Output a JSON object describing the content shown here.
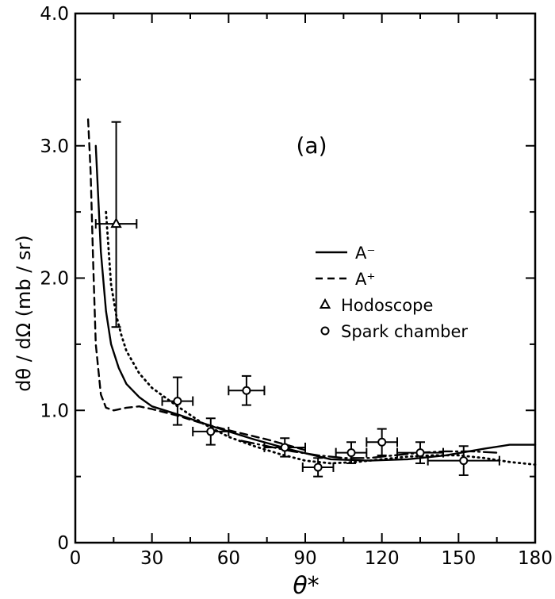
{
  "chart_data": {
    "type": "scatter",
    "panel_label": "(a)",
    "xlabel": "θ*",
    "ylabel": "dθ / dΩ  (mb / sr)",
    "xlim": [
      0,
      180
    ],
    "ylim": [
      0,
      4.0
    ],
    "x_ticks": [
      0,
      30,
      60,
      90,
      120,
      150,
      180
    ],
    "x_tick_labels": [
      "0",
      "30",
      "60",
      "90",
      "120",
      "150",
      "180"
    ],
    "y_ticks": [
      0,
      1.0,
      2.0,
      3.0,
      4.0
    ],
    "y_tick_labels": [
      "0",
      "1.0",
      "2.0",
      "3.0",
      "4.0"
    ],
    "grid": false,
    "legend_position": "right-middle",
    "legend": [
      {
        "label": "A⁻",
        "style": "solid"
      },
      {
        "label": "A⁺",
        "style": "dashed"
      },
      {
        "label": "Hodoscope",
        "marker": "triangle"
      },
      {
        "label": "Spark chamber",
        "marker": "circle"
      }
    ],
    "curves": [
      {
        "label": "A⁻",
        "style": "solid",
        "x": [
          8,
          9,
          10,
          12,
          14,
          17,
          20,
          25,
          30,
          40,
          55,
          70,
          85,
          100,
          115,
          130,
          145,
          160,
          170,
          180
        ],
        "y": [
          3.0,
          2.6,
          2.2,
          1.75,
          1.5,
          1.32,
          1.2,
          1.1,
          1.03,
          0.97,
          0.87,
          0.78,
          0.7,
          0.63,
          0.62,
          0.63,
          0.66,
          0.71,
          0.74,
          0.74
        ]
      },
      {
        "label": "A⁺",
        "style": "dashed",
        "x": [
          5,
          6,
          7,
          8,
          10,
          12,
          15,
          20,
          25,
          30,
          40,
          50,
          60,
          75,
          90
        ],
        "y": [
          3.2,
          2.8,
          2.1,
          1.5,
          1.12,
          1.02,
          1.0,
          1.02,
          1.03,
          1.01,
          0.96,
          0.9,
          0.85,
          0.78,
          0.7
        ]
      },
      {
        "label": "",
        "style": "dash-dot",
        "x": [
          65,
          75,
          85,
          95,
          105,
          115,
          125,
          135,
          145,
          155,
          165
        ],
        "y": [
          0.77,
          0.73,
          0.69,
          0.66,
          0.64,
          0.64,
          0.66,
          0.68,
          0.69,
          0.69,
          0.68
        ]
      },
      {
        "label": "",
        "style": "dotted",
        "x": [
          12,
          14,
          16,
          18,
          20,
          25,
          30,
          40,
          50,
          60,
          70,
          80,
          90,
          100,
          110,
          120,
          130,
          140,
          150,
          160,
          170,
          180
        ],
        "y": [
          2.5,
          1.95,
          1.72,
          1.57,
          1.45,
          1.28,
          1.17,
          1.03,
          0.9,
          0.8,
          0.73,
          0.67,
          0.62,
          0.6,
          0.61,
          0.63,
          0.65,
          0.66,
          0.66,
          0.64,
          0.61,
          0.59
        ]
      }
    ],
    "series": [
      {
        "name": "Hodoscope",
        "marker": "triangle",
        "points": [
          {
            "x": 16,
            "y": 2.41,
            "xerr_lo": 8,
            "xerr_hi": 8,
            "yerr_lo": 0.78,
            "yerr_hi": 0.77
          }
        ]
      },
      {
        "name": "Spark chamber",
        "marker": "circle",
        "points": [
          {
            "x": 40,
            "y": 1.07,
            "xerr_lo": 6,
            "xerr_hi": 6,
            "yerr_lo": 0.18,
            "yerr_hi": 0.18
          },
          {
            "x": 53,
            "y": 0.84,
            "xerr_lo": 7,
            "xerr_hi": 7,
            "yerr_lo": 0.1,
            "yerr_hi": 0.1
          },
          {
            "x": 67,
            "y": 1.15,
            "xerr_lo": 7,
            "xerr_hi": 7,
            "yerr_lo": 0.11,
            "yerr_hi": 0.11
          },
          {
            "x": 82,
            "y": 0.72,
            "xerr_lo": 8,
            "xerr_hi": 8,
            "yerr_lo": 0.07,
            "yerr_hi": 0.07
          },
          {
            "x": 95,
            "y": 0.57,
            "xerr_lo": 6,
            "xerr_hi": 6,
            "yerr_lo": 0.07,
            "yerr_hi": 0.07
          },
          {
            "x": 108,
            "y": 0.68,
            "xerr_lo": 6,
            "xerr_hi": 6,
            "yerr_lo": 0.08,
            "yerr_hi": 0.08
          },
          {
            "x": 120,
            "y": 0.76,
            "xerr_lo": 6,
            "xerr_hi": 6,
            "yerr_lo": 0.1,
            "yerr_hi": 0.1
          },
          {
            "x": 135,
            "y": 0.68,
            "xerr_lo": 9,
            "xerr_hi": 9,
            "yerr_lo": 0.08,
            "yerr_hi": 0.08
          },
          {
            "x": 152,
            "y": 0.62,
            "xerr_lo": 14,
            "xerr_hi": 14,
            "yerr_lo": 0.11,
            "yerr_hi": 0.11
          }
        ]
      }
    ]
  }
}
